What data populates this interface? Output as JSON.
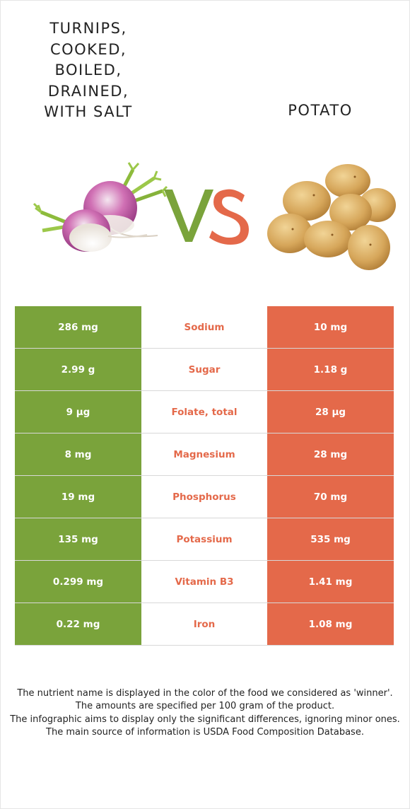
{
  "food_left": {
    "name": "TURNIPS,\nCOOKED,\nBOILED,\nDRAINED,\nWITH SALT",
    "color": "#7aa33b",
    "image_icon": "turnip-image"
  },
  "food_right": {
    "name": "POTATO",
    "color": "#e4694a",
    "image_icon": "potato-image"
  },
  "vs": {
    "v_color": "#7aa33b",
    "s_color": "#e4694a"
  },
  "rows": [
    {
      "left": "286 mg",
      "nutrient": "Sodium",
      "right": "10 mg",
      "winner": "right"
    },
    {
      "left": "2.99 g",
      "nutrient": "Sugar",
      "right": "1.18 g",
      "winner": "right"
    },
    {
      "left": "9 µg",
      "nutrient": "Folate, total",
      "right": "28 µg",
      "winner": "right"
    },
    {
      "left": "8 mg",
      "nutrient": "Magnesium",
      "right": "28 mg",
      "winner": "right"
    },
    {
      "left": "19 mg",
      "nutrient": "Phosphorus",
      "right": "70 mg",
      "winner": "right"
    },
    {
      "left": "135 mg",
      "nutrient": "Potassium",
      "right": "535 mg",
      "winner": "right"
    },
    {
      "left": "0.299 mg",
      "nutrient": "Vitamin B3",
      "right": "1.41 mg",
      "winner": "right"
    },
    {
      "left": "0.22 mg",
      "nutrient": "Iron",
      "right": "1.08 mg",
      "winner": "right"
    }
  ],
  "footer": [
    "The nutrient name is displayed in the color of the food we considered as 'winner'.",
    "The amounts are specified per 100 gram of the product.",
    "The infographic aims to display only the significant differences, ignoring minor ones.",
    "The main source of information is USDA Food Composition Database."
  ]
}
